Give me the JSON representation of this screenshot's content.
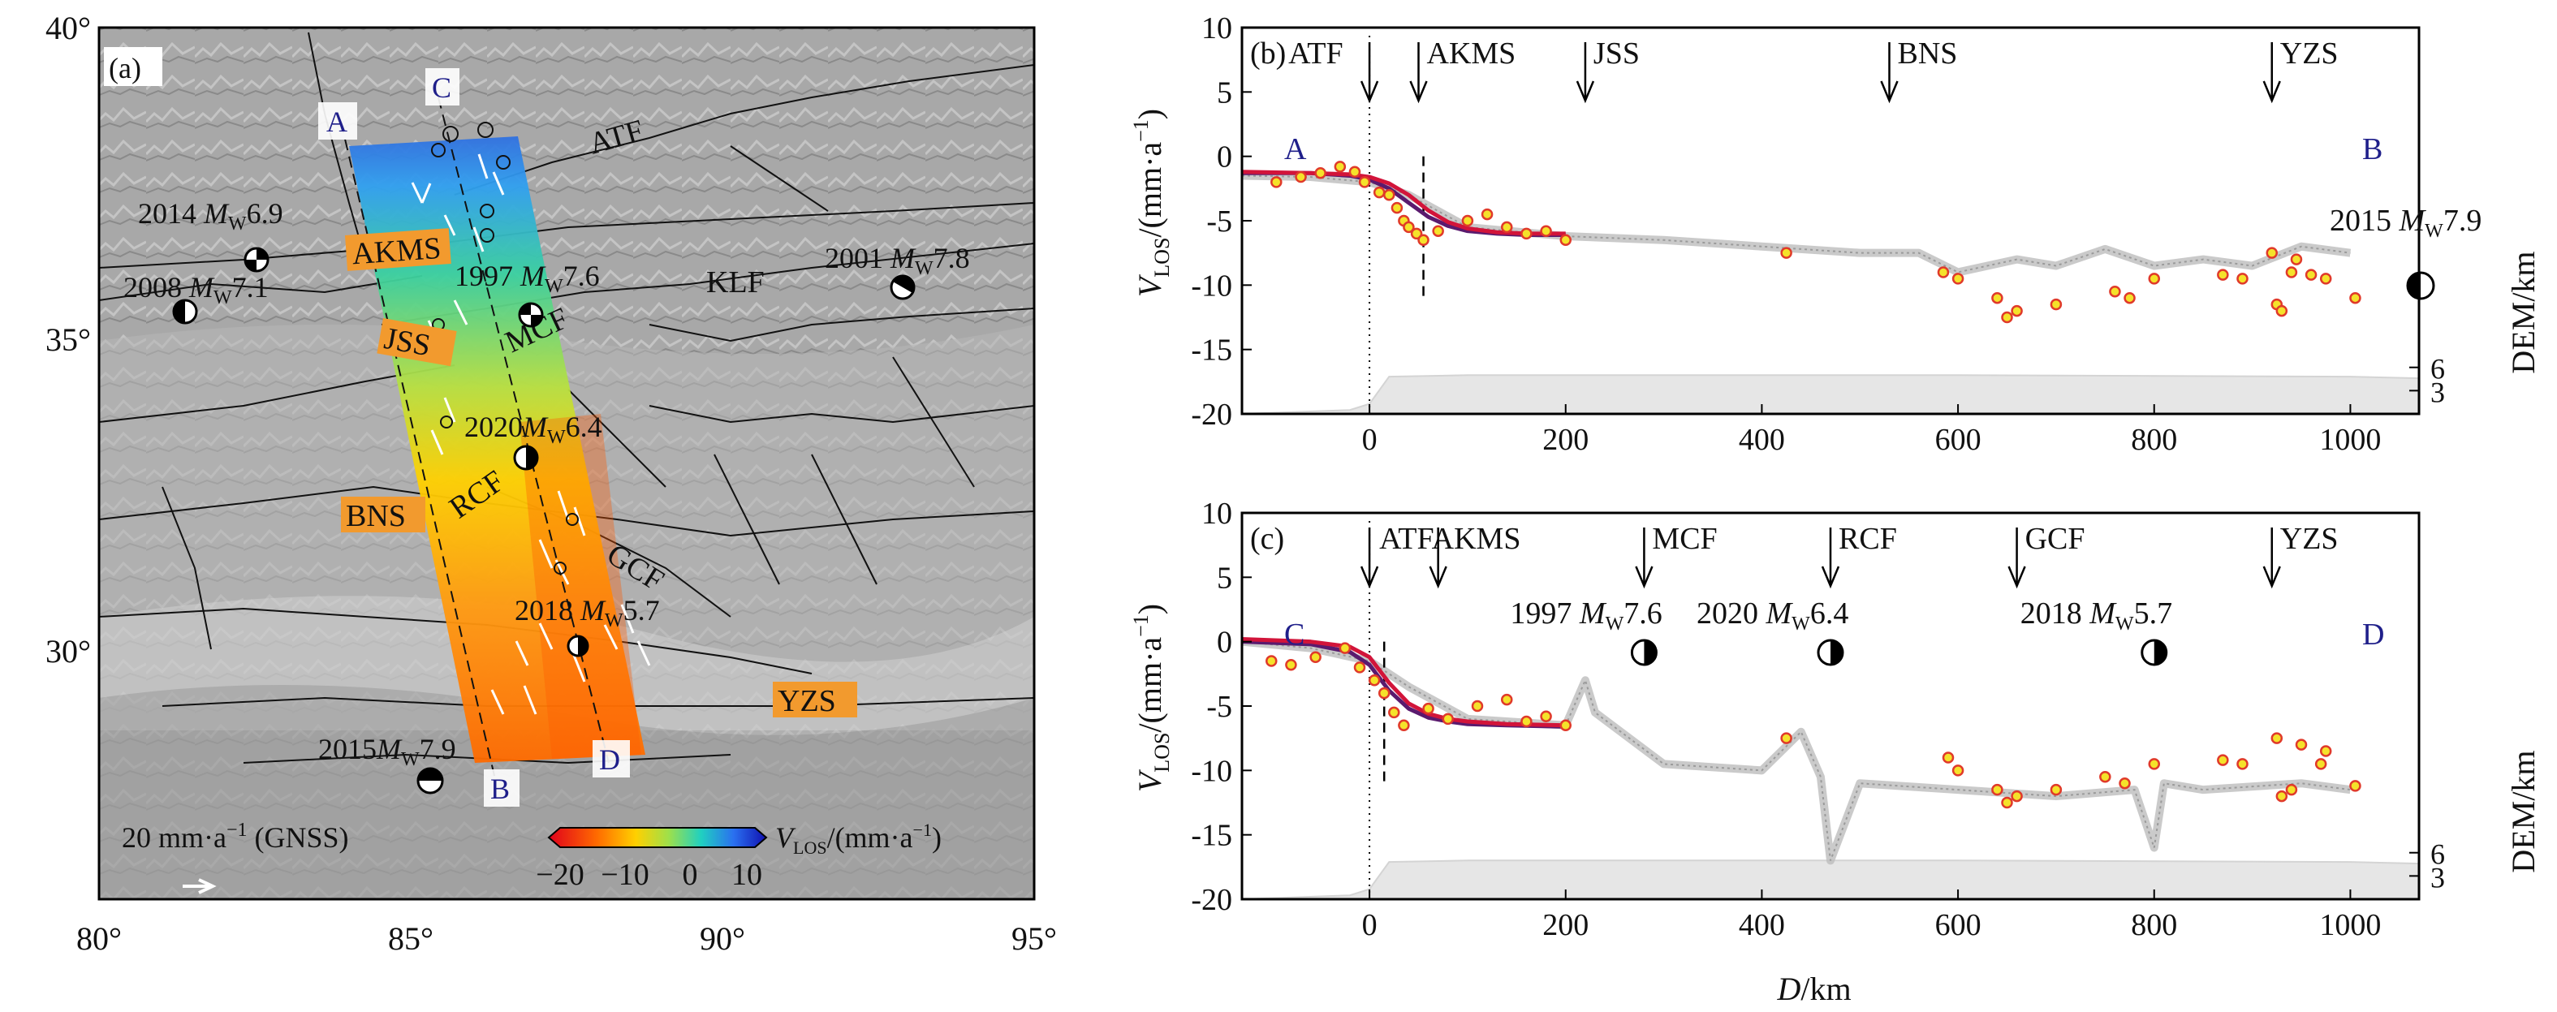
{
  "colors": {
    "red_fit": "#d2143a",
    "purple_fit": "#5a1a6e",
    "yellow_point": "#f5e22a",
    "point_outline": "#e03a2a",
    "profile_gray": "#bdbdbd",
    "dem_fill": "#e6e6e6",
    "map_bg": "#a9a9a9",
    "label_orange": "#f29a2e",
    "label_blue": "#1f1f8a"
  },
  "map_panel": {
    "panel_label": "(a)",
    "lon_ticks": [
      "80°",
      "85°",
      "90°",
      "95°"
    ],
    "lat_ticks": [
      "40°",
      "35°",
      "30°"
    ],
    "profile_endpoints": {
      "a": "A",
      "b": "B",
      "c": "C",
      "d": "D"
    },
    "fault_labels": {
      "atf": "ATF",
      "klf": "KLF",
      "mcf": "MCF",
      "rcf": "RCF",
      "gcf": "GCF",
      "akms": "AKMS",
      "jss": "JSS",
      "bns": "BNS",
      "yzs": "YZS"
    },
    "earthquakes": {
      "eq2014_year": "2014",
      "eq2014_mag": "6.9",
      "eq2008_year": "2008",
      "eq2008_mag": "7.1",
      "eq1997_year": "1997",
      "eq1997_mag": "7.6",
      "eq2001_year": "2001",
      "eq2001_mag": "7.8",
      "eq2020_year": "2020",
      "eq2020_mag": "6.4",
      "eq2018_year": "2018",
      "eq2018_mag": "5.7",
      "eq2015_year": "2015",
      "eq2015_mag": "7.9",
      "m_symbol": "M",
      "w_subscript": "W"
    },
    "gnss_scale_label": "20 mm·a",
    "gnss_scale_sup": "−1",
    "gnss_scale_suffix": " (GNSS)",
    "colorbar_ticks": [
      "−20",
      "−10",
      "0",
      "10"
    ],
    "colorbar_label_v": "V",
    "colorbar_label_sub": "LOS",
    "colorbar_label_units": "/(mm·a",
    "colorbar_label_sup": "−1",
    "colorbar_label_close": ")"
  },
  "profile_panels": {
    "ylabel_v": "V",
    "ylabel_sub": "LOS",
    "ylabel_units": "/(mm·a",
    "ylabel_sup": "−1",
    "ylabel_close": ")",
    "right_label": "DEM/km",
    "right_ticks": [
      "6",
      "3"
    ],
    "xlabel_d": "D",
    "xlabel_units": "/km"
  },
  "chart_data": [
    {
      "type": "line",
      "panel": "(b)",
      "profile_start": "A",
      "profile_end": "B",
      "xlim": [
        -130,
        1070
      ],
      "ylim": [
        -20,
        10
      ],
      "x_ticks": [
        0,
        200,
        400,
        600,
        800,
        1000
      ],
      "y_ticks": [
        10,
        5,
        0,
        -5,
        -10,
        -15,
        -20
      ],
      "annotations": [
        {
          "label": "ATF",
          "x": 0
        },
        {
          "label": "AKMS",
          "x": 50
        },
        {
          "label": "JSS",
          "x": 220
        },
        {
          "label": "BNS",
          "x": 530
        },
        {
          "label": "YZS",
          "x": 920
        }
      ],
      "earthquake_label": {
        "year": "2015",
        "mag": "7.9"
      },
      "fit_red": {
        "x": [
          -130,
          -60,
          -20,
          0,
          20,
          40,
          60,
          80,
          100,
          130,
          160,
          200
        ],
        "y": [
          -1.2,
          -1.3,
          -1.4,
          -1.6,
          -2.1,
          -3.0,
          -4.2,
          -5.1,
          -5.6,
          -5.9,
          -6.0,
          -6.0
        ]
      },
      "fit_purple": {
        "x": [
          -130,
          -60,
          -20,
          0,
          20,
          40,
          60,
          80,
          100,
          130,
          160,
          200
        ],
        "y": [
          -1.3,
          -1.3,
          -1.5,
          -1.8,
          -2.5,
          -3.6,
          -4.7,
          -5.4,
          -5.8,
          -6.0,
          -6.1,
          -6.1
        ]
      },
      "gnss_points": {
        "x": [
          -95,
          -70,
          -50,
          -30,
          -15,
          -5,
          10,
          20,
          28,
          35,
          40,
          48,
          55,
          70,
          100,
          120,
          140,
          160,
          180,
          200,
          425,
          585,
          600,
          640,
          650,
          660,
          700,
          760,
          775,
          800,
          870,
          890,
          920,
          925,
          930,
          940,
          945,
          960,
          975,
          1005
        ],
        "y": [
          -2.0,
          -1.6,
          -1.3,
          -0.8,
          -1.2,
          -2.0,
          -2.8,
          -3.0,
          -4.0,
          -5.0,
          -5.5,
          -6.0,
          -6.5,
          -5.8,
          -5.0,
          -4.5,
          -5.5,
          -6.0,
          -5.8,
          -6.5,
          -7.5,
          -9.0,
          -9.5,
          -11.0,
          -12.5,
          -12.0,
          -11.5,
          -10.5,
          -11.0,
          -9.5,
          -9.2,
          -9.5,
          -7.5,
          -11.5,
          -12.0,
          -9.0,
          -8.0,
          -9.2,
          -9.5,
          -11.0
        ]
      },
      "insar_profile": {
        "x": [
          -130,
          -60,
          0,
          40,
          100,
          200,
          300,
          400,
          500,
          560,
          600,
          660,
          700,
          750,
          800,
          850,
          900,
          950,
          1000
        ],
        "y": [
          -1.5,
          -1.6,
          -2.0,
          -3.0,
          -5.5,
          -6.2,
          -6.5,
          -7.0,
          -7.5,
          -7.5,
          -9.0,
          -8.0,
          -8.5,
          -7.2,
          -8.5,
          -8.0,
          -8.5,
          -7.0,
          -7.5
        ]
      },
      "dem_km": {
        "x": [
          -130,
          -20,
          0,
          20,
          100,
          600,
          1000,
          1070
        ],
        "y": [
          0,
          0.5,
          1.3,
          4.8,
          5.0,
          5.0,
          4.8,
          4.6
        ]
      }
    },
    {
      "type": "line",
      "panel": "(c)",
      "profile_start": "C",
      "profile_end": "D",
      "xlim": [
        -130,
        1070
      ],
      "ylim": [
        -20,
        10
      ],
      "x_ticks": [
        0,
        200,
        400,
        600,
        800,
        1000
      ],
      "y_ticks": [
        10,
        5,
        0,
        -5,
        -10,
        -15,
        -20
      ],
      "xlabel": "D/km",
      "annotations": [
        {
          "label": "ATF",
          "x": 0
        },
        {
          "label": "AKMS",
          "x": 70
        },
        {
          "label": "MCF",
          "x": 280
        },
        {
          "label": "RCF",
          "x": 470
        },
        {
          "label": "GCF",
          "x": 660
        },
        {
          "label": "YZS",
          "x": 920
        }
      ],
      "earthquake_labels": [
        {
          "year": "1997",
          "mag": "7.6",
          "x": 280
        },
        {
          "year": "2020",
          "mag": "6.4",
          "x": 470
        },
        {
          "year": "2018",
          "mag": "5.7",
          "x": 800
        }
      ],
      "fit_red": {
        "x": [
          -130,
          -60,
          -20,
          0,
          20,
          40,
          60,
          80,
          100,
          140,
          200
        ],
        "y": [
          0.2,
          0.0,
          -0.4,
          -1.2,
          -3.2,
          -4.8,
          -5.6,
          -6.0,
          -6.2,
          -6.4,
          -6.5
        ]
      },
      "fit_purple": {
        "x": [
          -130,
          -60,
          -20,
          0,
          20,
          40,
          60,
          80,
          100,
          140,
          200
        ],
        "y": [
          0.0,
          -0.2,
          -0.8,
          -1.8,
          -3.8,
          -5.2,
          -5.9,
          -6.2,
          -6.4,
          -6.5,
          -6.6
        ]
      },
      "gnss_points": {
        "x": [
          -100,
          -80,
          -55,
          -25,
          -10,
          5,
          15,
          25,
          35,
          60,
          80,
          110,
          140,
          160,
          180,
          200,
          425,
          590,
          600,
          640,
          650,
          660,
          700,
          750,
          770,
          800,
          870,
          890,
          925,
          930,
          940,
          950,
          970,
          975,
          1005
        ],
        "y": [
          -1.5,
          -1.8,
          -1.2,
          -0.5,
          -2.0,
          -3.0,
          -4.0,
          -5.5,
          -6.5,
          -5.2,
          -6.0,
          -5.0,
          -4.5,
          -6.2,
          -5.8,
          -6.5,
          -7.5,
          -9.0,
          -10.0,
          -11.5,
          -12.5,
          -12.0,
          -11.5,
          -10.5,
          -11.0,
          -9.5,
          -9.2,
          -9.5,
          -7.5,
          -12.0,
          -11.5,
          -8.0,
          -9.5,
          -8.5,
          -11.2
        ]
      },
      "insar_profile": {
        "x": [
          -130,
          -60,
          0,
          40,
          100,
          200,
          220,
          230,
          300,
          400,
          440,
          460,
          470,
          500,
          600,
          700,
          780,
          800,
          810,
          850,
          950,
          1000
        ],
        "y": [
          0.0,
          -0.5,
          -1.5,
          -3.5,
          -6.0,
          -6.5,
          -3.0,
          -5.5,
          -9.5,
          -10.0,
          -7.0,
          -10.5,
          -17.0,
          -11.0,
          -11.5,
          -12.0,
          -11.5,
          -16.0,
          -11.0,
          -11.5,
          -11.0,
          -11.5
        ]
      },
      "dem_km": {
        "x": [
          -130,
          -20,
          0,
          20,
          100,
          600,
          1000,
          1070
        ],
        "y": [
          0,
          0.5,
          1.3,
          4.8,
          5.0,
          5.0,
          4.8,
          4.6
        ]
      }
    }
  ]
}
